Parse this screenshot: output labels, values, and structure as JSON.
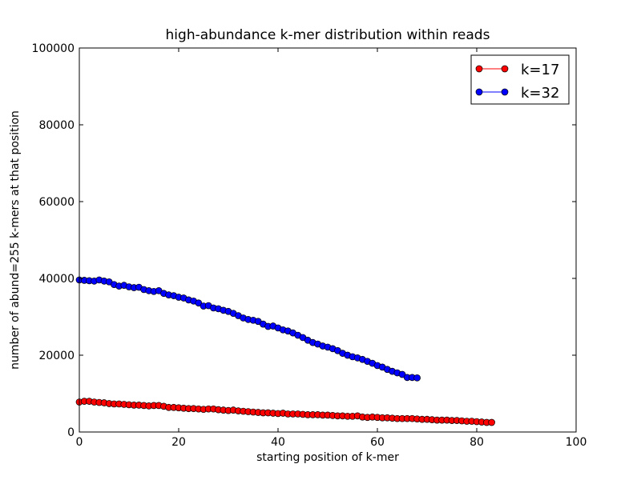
{
  "chart_data": {
    "type": "line",
    "title": "high-abundance k-mer distribution within reads",
    "xlabel": "starting position of k-mer",
    "ylabel": "number of abund=255 k-mers at that position",
    "xlim": [
      0,
      100
    ],
    "ylim": [
      0,
      100000
    ],
    "xticks": [
      0,
      20,
      40,
      60,
      80,
      100
    ],
    "yticks": [
      0,
      20000,
      40000,
      60000,
      80000,
      100000
    ],
    "xtick_labels": [
      "0",
      "20",
      "40",
      "60",
      "80",
      "100"
    ],
    "ytick_labels": [
      "0",
      "20000",
      "40000",
      "60000",
      "80000",
      "100000"
    ],
    "grid": false,
    "legend_position": "top-right",
    "series": [
      {
        "name": "k=17",
        "color": "#ff0000",
        "x": [
          0,
          1,
          2,
          3,
          4,
          5,
          6,
          7,
          8,
          9,
          10,
          11,
          12,
          13,
          14,
          15,
          16,
          17,
          18,
          19,
          20,
          21,
          22,
          23,
          24,
          25,
          26,
          27,
          28,
          29,
          30,
          31,
          32,
          33,
          34,
          35,
          36,
          37,
          38,
          39,
          40,
          41,
          42,
          43,
          44,
          45,
          46,
          47,
          48,
          49,
          50,
          51,
          52,
          53,
          54,
          55,
          56,
          57,
          58,
          59,
          60,
          61,
          62,
          63,
          64,
          65,
          66,
          67,
          68,
          69,
          70,
          71,
          72,
          73,
          74,
          75,
          76,
          77,
          78,
          79,
          80,
          81,
          82,
          83
        ],
        "y": [
          7800,
          8000,
          8000,
          7800,
          7700,
          7600,
          7400,
          7300,
          7300,
          7200,
          7100,
          7000,
          7000,
          6900,
          6800,
          6900,
          6900,
          6700,
          6400,
          6400,
          6300,
          6200,
          6100,
          6100,
          6000,
          5900,
          6000,
          6000,
          5800,
          5700,
          5600,
          5700,
          5500,
          5400,
          5300,
          5200,
          5100,
          5000,
          5000,
          4900,
          4800,
          4900,
          4700,
          4700,
          4700,
          4600,
          4500,
          4500,
          4500,
          4400,
          4400,
          4300,
          4200,
          4200,
          4100,
          4100,
          4200,
          3900,
          3800,
          3900,
          3800,
          3700,
          3700,
          3600,
          3500,
          3500,
          3500,
          3500,
          3400,
          3300,
          3300,
          3200,
          3100,
          3100,
          3100,
          3000,
          3000,
          2900,
          2800,
          2800,
          2700,
          2600,
          2500,
          2500
        ]
      },
      {
        "name": "k=32",
        "color": "#0000ff",
        "x": [
          0,
          1,
          2,
          3,
          4,
          5,
          6,
          7,
          8,
          9,
          10,
          11,
          12,
          13,
          14,
          15,
          16,
          17,
          18,
          19,
          20,
          21,
          22,
          23,
          24,
          25,
          26,
          27,
          28,
          29,
          30,
          31,
          32,
          33,
          34,
          35,
          36,
          37,
          38,
          39,
          40,
          41,
          42,
          43,
          44,
          45,
          46,
          47,
          48,
          49,
          50,
          51,
          52,
          53,
          54,
          55,
          56,
          57,
          58,
          59,
          60,
          61,
          62,
          63,
          64,
          65,
          66,
          67,
          68
        ],
        "y": [
          39600,
          39500,
          39400,
          39300,
          39600,
          39300,
          39100,
          38400,
          38000,
          38200,
          37800,
          37600,
          37700,
          37100,
          36800,
          36600,
          36800,
          36100,
          35700,
          35500,
          35100,
          34900,
          34400,
          34100,
          33600,
          32800,
          32900,
          32300,
          32100,
          31700,
          31400,
          30900,
          30300,
          29700,
          29300,
          29100,
          28800,
          28100,
          27500,
          27600,
          27100,
          26600,
          26300,
          25800,
          25200,
          24600,
          23900,
          23300,
          22900,
          22400,
          22100,
          21700,
          21200,
          20500,
          20000,
          19600,
          19300,
          18900,
          18400,
          17900,
          17300,
          16900,
          16300,
          15800,
          15400,
          15000,
          14200,
          14200,
          14100
        ]
      }
    ]
  }
}
